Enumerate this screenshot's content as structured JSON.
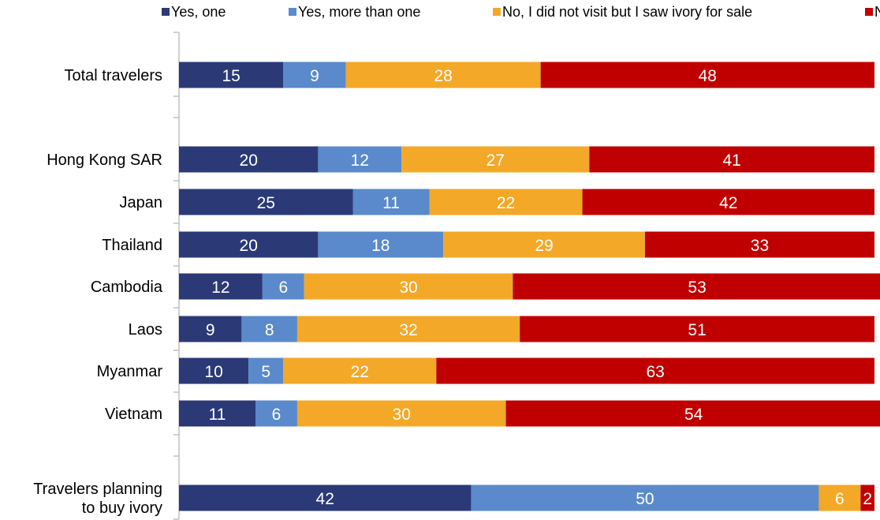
{
  "chart_data": {
    "type": "bar",
    "orientation": "horizontal",
    "stacked": true,
    "legend_position": "top",
    "grid": false,
    "xlim": [
      0,
      100
    ],
    "categories": [
      "Total travelers",
      "Hong Kong SAR",
      "Japan",
      "Thailand",
      "Cambodia",
      "Laos",
      "Myanmar",
      "Vietnam",
      "Travelers planning to buy ivory"
    ],
    "category_lines": [
      [
        "Total travelers"
      ],
      [
        "Hong Kong SAR"
      ],
      [
        "Japan"
      ],
      [
        "Thailand"
      ],
      [
        "Cambodia"
      ],
      [
        "Laos"
      ],
      [
        "Myanmar"
      ],
      [
        "Vietnam"
      ],
      [
        "Travelers planning",
        "to buy ivory"
      ]
    ],
    "series": [
      {
        "name": "Yes, one",
        "color": "#2B3A76",
        "values": [
          15,
          20,
          25,
          20,
          12,
          9,
          10,
          11,
          42
        ]
      },
      {
        "name": "Yes, more than one",
        "color": "#5A8ACB",
        "values": [
          9,
          12,
          11,
          18,
          6,
          8,
          5,
          6,
          50
        ]
      },
      {
        "name": "No, I did not visit but I saw ivory for sale",
        "color": "#F3A827",
        "values": [
          28,
          27,
          22,
          29,
          30,
          32,
          22,
          30,
          6
        ]
      },
      {
        "name": "No",
        "color": "#C00000",
        "values": [
          48,
          41,
          42,
          33,
          53,
          51,
          63,
          54,
          2
        ]
      }
    ]
  }
}
